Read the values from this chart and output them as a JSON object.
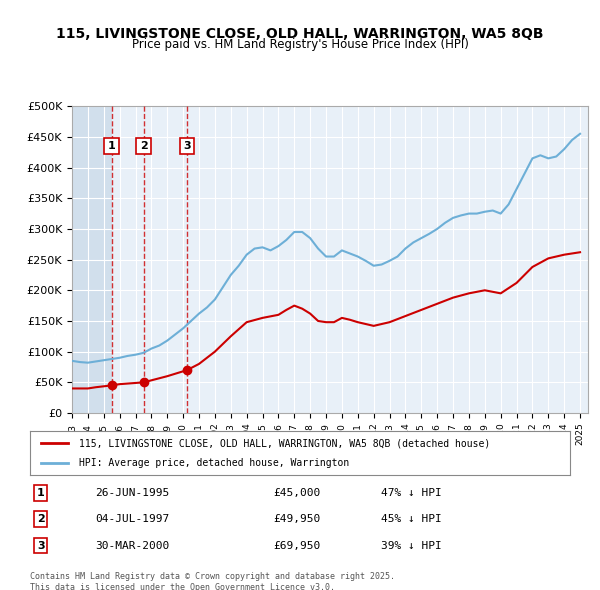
{
  "title": "115, LIVINGSTONE CLOSE, OLD HALL, WARRINGTON, WA5 8QB",
  "subtitle": "Price paid vs. HM Land Registry's House Price Index (HPI)",
  "legend_line1": "115, LIVINGSTONE CLOSE, OLD HALL, WARRINGTON, WA5 8QB (detached house)",
  "legend_line2": "HPI: Average price, detached house, Warrington",
  "footer": "Contains HM Land Registry data © Crown copyright and database right 2025.\nThis data is licensed under the Open Government Licence v3.0.",
  "transactions": [
    {
      "num": 1,
      "date": "26-JUN-1995",
      "price": 45000,
      "pct": "47% ↓ HPI",
      "year": 1995.49
    },
    {
      "num": 2,
      "date": "04-JUL-1997",
      "price": 49950,
      "pct": "45% ↓ HPI",
      "year": 1997.51
    },
    {
      "num": 3,
      "date": "30-MAR-2000",
      "price": 69950,
      "pct": "39% ↓ HPI",
      "year": 2000.25
    }
  ],
  "hpi_color": "#6dafd7",
  "price_color": "#cc0000",
  "hatch_color": "#c8d8e8",
  "background_color": "#dce8f0",
  "plot_bg": "#e8f0f8",
  "ylim": [
    0,
    500000
  ],
  "xlim_start": 1993,
  "xlim_end": 2025.5,
  "hpi_data": {
    "years": [
      1993.0,
      1993.5,
      1994.0,
      1994.5,
      1995.0,
      1995.5,
      1996.0,
      1996.5,
      1997.0,
      1997.5,
      1998.0,
      1998.5,
      1999.0,
      1999.5,
      2000.0,
      2000.5,
      2001.0,
      2001.5,
      2002.0,
      2002.5,
      2003.0,
      2003.5,
      2004.0,
      2004.5,
      2005.0,
      2005.5,
      2006.0,
      2006.5,
      2007.0,
      2007.5,
      2008.0,
      2008.5,
      2009.0,
      2009.5,
      2010.0,
      2010.5,
      2011.0,
      2011.5,
      2012.0,
      2012.5,
      2013.0,
      2013.5,
      2014.0,
      2014.5,
      2015.0,
      2015.5,
      2016.0,
      2016.5,
      2017.0,
      2017.5,
      2018.0,
      2018.5,
      2019.0,
      2019.5,
      2020.0,
      2020.5,
      2021.0,
      2021.5,
      2022.0,
      2022.5,
      2023.0,
      2023.5,
      2024.0,
      2024.5,
      2025.0
    ],
    "values": [
      85000,
      83000,
      82000,
      84000,
      86000,
      88000,
      90000,
      93000,
      95000,
      98000,
      105000,
      110000,
      118000,
      128000,
      138000,
      150000,
      162000,
      172000,
      185000,
      205000,
      225000,
      240000,
      258000,
      268000,
      270000,
      265000,
      272000,
      282000,
      295000,
      295000,
      285000,
      268000,
      255000,
      255000,
      265000,
      260000,
      255000,
      248000,
      240000,
      242000,
      248000,
      255000,
      268000,
      278000,
      285000,
      292000,
      300000,
      310000,
      318000,
      322000,
      325000,
      325000,
      328000,
      330000,
      325000,
      340000,
      365000,
      390000,
      415000,
      420000,
      415000,
      418000,
      430000,
      445000,
      455000
    ]
  },
  "price_data": {
    "years": [
      1993.0,
      1993.5,
      1994.0,
      1994.5,
      1995.49,
      1996.0,
      1997.51,
      1999.0,
      2000.25,
      2001.0,
      2002.0,
      2003.0,
      2004.0,
      2005.0,
      2006.0,
      2006.5,
      2007.0,
      2007.5,
      2008.0,
      2008.5,
      2009.0,
      2009.5,
      2010.0,
      2010.5,
      2011.0,
      2011.5,
      2012.0,
      2013.0,
      2014.0,
      2015.0,
      2016.0,
      2017.0,
      2018.0,
      2019.0,
      2020.0,
      2021.0,
      2022.0,
      2022.5,
      2023.0,
      2023.5,
      2024.0,
      2024.5,
      2025.0
    ],
    "values": [
      40000,
      40000,
      40000,
      42000,
      45000,
      47000,
      49950,
      60000,
      69950,
      80000,
      100000,
      125000,
      148000,
      155000,
      160000,
      168000,
      175000,
      170000,
      162000,
      150000,
      148000,
      148000,
      155000,
      152000,
      148000,
      145000,
      142000,
      148000,
      158000,
      168000,
      178000,
      188000,
      195000,
      200000,
      195000,
      212000,
      238000,
      245000,
      252000,
      255000,
      258000,
      260000,
      262000
    ]
  }
}
